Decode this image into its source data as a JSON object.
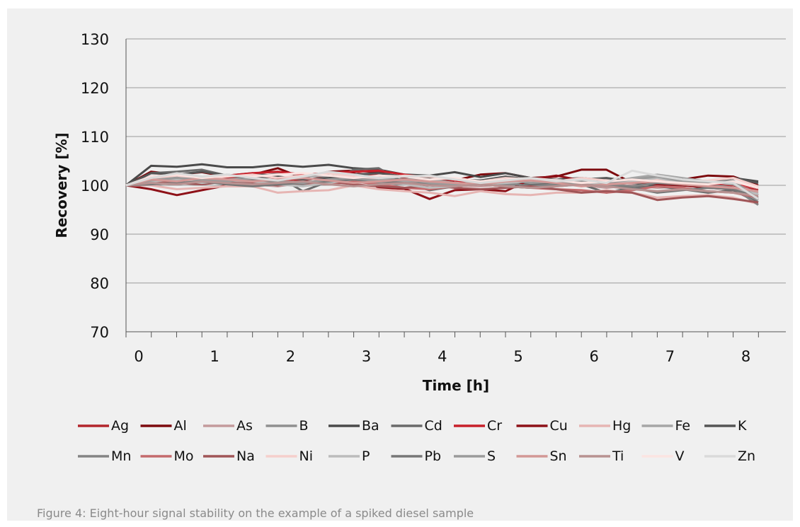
{
  "caption": "Figure 4: Eight-hour signal stability on the example of a spiked diesel sample",
  "chart_data": {
    "type": "line",
    "title": "",
    "xlabel": "Time [h]",
    "ylabel": "Recovery  [%]",
    "xlim": [
      0,
      8.33
    ],
    "ylim": [
      70,
      130
    ],
    "xticks": [
      0,
      1,
      2,
      3,
      4,
      5,
      6,
      7,
      8
    ],
    "yticks": [
      70,
      80,
      90,
      100,
      110,
      120,
      130
    ],
    "grid": "horizontal",
    "legend_position": "bottom",
    "x": [
      0,
      0.33,
      0.67,
      1,
      1.33,
      1.67,
      2,
      2.33,
      2.67,
      3,
      3.33,
      3.67,
      4,
      4.33,
      4.67,
      5,
      5.33,
      5.67,
      6,
      6.33,
      6.67,
      7,
      7.33,
      7.67,
      8,
      8.33
    ],
    "series": [
      {
        "name": "Ag",
        "color": "#b3262c",
        "values": [
          100,
          101.5,
          101.2,
          100.8,
          101.5,
          102,
          101.5,
          101,
          101.8,
          102.5,
          102,
          101,
          100.5,
          100,
          100.8,
          101,
          101.5,
          101.2,
          100.5,
          100.2,
          100.5,
          100.8,
          100.5,
          100.2,
          100,
          99
        ]
      },
      {
        "name": "Al",
        "color": "#7d0a0e",
        "values": [
          100,
          102.8,
          102.2,
          102.7,
          101.8,
          102.2,
          103.5,
          101.5,
          102.8,
          103,
          102.7,
          101.5,
          100,
          101,
          102.2,
          102.5,
          101.5,
          101.8,
          103.2,
          103.2,
          100.5,
          100.5,
          101.2,
          102,
          101.8,
          100
        ]
      },
      {
        "name": "As",
        "color": "#c49a9c",
        "values": [
          100,
          100.5,
          100.8,
          101.2,
          100.5,
          100.2,
          99.8,
          100.5,
          101,
          101.5,
          100.5,
          100.8,
          100.2,
          100,
          99.8,
          100.2,
          100.5,
          100.2,
          100,
          99.5,
          100,
          99.5,
          99.8,
          100.5,
          100.2,
          98.5
        ]
      },
      {
        "name": "B",
        "color": "#8f8f8f",
        "values": [
          100,
          101.2,
          101.8,
          101.5,
          102.2,
          101.5,
          102.5,
          102.2,
          101.8,
          102.5,
          101.5,
          101.2,
          101.5,
          101,
          100.5,
          100.2,
          100.5,
          100.8,
          101.2,
          100.5,
          100.8,
          101.5,
          100.8,
          100.2,
          99.5,
          97
        ]
      },
      {
        "name": "Ba",
        "color": "#4a4a4a",
        "values": [
          100,
          104,
          103.8,
          104.3,
          103.7,
          103.7,
          104.2,
          103.8,
          104.2,
          103.5,
          103.2,
          102.2,
          102,
          102.7,
          101.7,
          102.5,
          101.5,
          101.2,
          101.5,
          101,
          100.5,
          100,
          100.8,
          100.5,
          101.5,
          100.8
        ]
      },
      {
        "name": "Cd",
        "color": "#6a6a6a",
        "values": [
          100,
          102.5,
          102.8,
          103.2,
          102,
          102.5,
          101.8,
          98.8,
          100.8,
          103.2,
          103.5,
          100.5,
          99,
          99.8,
          100.2,
          101,
          100.2,
          100.5,
          100.2,
          98.5,
          99.5,
          99.8,
          99.2,
          98.5,
          99,
          96.5
        ]
      },
      {
        "name": "Cr",
        "color": "#c8202a",
        "values": [
          100,
          101.8,
          102.2,
          101.5,
          102,
          102.5,
          102.8,
          102.2,
          102.5,
          102.8,
          103,
          102.2,
          101.5,
          101,
          100.5,
          100.8,
          101.2,
          100.5,
          100.2,
          100.8,
          101.2,
          101.5,
          100.8,
          100.2,
          100.5,
          99.5
        ]
      },
      {
        "name": "Cu",
        "color": "#8e1118",
        "values": [
          100,
          99.2,
          98,
          99,
          100,
          100.5,
          100.2,
          100.5,
          101,
          102.5,
          99.5,
          99.3,
          97.2,
          99,
          99.2,
          98.8,
          101.2,
          102,
          101,
          100.5,
          100.8,
          100.2,
          100,
          99.5,
          99.2,
          98
        ]
      },
      {
        "name": "Hg",
        "color": "#e6b5b3",
        "values": [
          100,
          100,
          99.2,
          99.5,
          99.8,
          99.8,
          98.5,
          98.8,
          99,
          100,
          99.2,
          98.8,
          98.5,
          97.8,
          98.8,
          98.2,
          98,
          98.5,
          98.5,
          99,
          98.5,
          97.5,
          97.8,
          98,
          97.5,
          96.2
        ]
      },
      {
        "name": "Fe",
        "color": "#a6a6a6",
        "values": [
          100,
          101,
          101.5,
          100.8,
          101.2,
          101.5,
          101,
          101.8,
          102,
          101.5,
          101.2,
          100.8,
          101.2,
          100.5,
          100.2,
          100.8,
          101,
          100.5,
          100.2,
          100.5,
          101.5,
          102.2,
          101.5,
          100.8,
          100.2,
          98
        ]
      },
      {
        "name": "K",
        "color": "#555555",
        "values": [
          100,
          102.5,
          102.2,
          102.8,
          102,
          101.5,
          101.8,
          101.2,
          101.5,
          102.2,
          102.5,
          101.8,
          101.5,
          101.2,
          101,
          101.8,
          101.2,
          101,
          101.2,
          101.5,
          100.8,
          101.8,
          101.2,
          100.5,
          101.5,
          100.5
        ]
      },
      {
        "name": "Mn",
        "color": "#848484",
        "values": [
          100,
          100.5,
          100.8,
          100.5,
          100.8,
          101.2,
          100.5,
          100.2,
          100.8,
          101.2,
          100.5,
          100.2,
          100.5,
          99.8,
          100.2,
          100.5,
          99.8,
          100.2,
          100.8,
          100.2,
          99.8,
          100.5,
          100.2,
          99.8,
          99.5,
          96
        ]
      },
      {
        "name": "Mo",
        "color": "#c46a6c",
        "values": [
          100,
          101.2,
          100.8,
          101.5,
          100.5,
          100.8,
          101.2,
          100.5,
          100.2,
          100.8,
          100.2,
          99.5,
          99.2,
          99.8,
          100.2,
          99.8,
          99.5,
          99.2,
          99,
          98.5,
          99,
          99.8,
          99.5,
          98.8,
          98.5,
          97.5
        ]
      },
      {
        "name": "Na",
        "color": "#a05557",
        "values": [
          100,
          100.8,
          100.5,
          100.2,
          100.8,
          100.5,
          100,
          100.5,
          100.8,
          100.2,
          99.8,
          99.5,
          100,
          99.5,
          99.2,
          99.5,
          99.8,
          99.2,
          98.5,
          98.8,
          98.5,
          97,
          97.5,
          97.8,
          97.2,
          96.5
        ]
      },
      {
        "name": "Ni",
        "color": "#f5cfcc",
        "values": [
          100,
          101.5,
          102,
          101.2,
          101.8,
          102.2,
          101.5,
          102,
          102.5,
          101.8,
          101.5,
          102,
          101.8,
          101.2,
          100.8,
          101.5,
          101.2,
          100.8,
          101.5,
          101,
          100.5,
          101.2,
          100.8,
          101,
          101.5,
          99.8
        ]
      },
      {
        "name": "P",
        "color": "#bcbcbc",
        "values": [
          100,
          100.8,
          101.2,
          100.5,
          101,
          100.8,
          100.2,
          99.8,
          100.5,
          101.2,
          100.8,
          100.2,
          99.5,
          99.8,
          100.2,
          100.5,
          100.8,
          101.2,
          100.5,
          100.2,
          100.8,
          101.5,
          100.5,
          99.8,
          99.2,
          98.2
        ]
      },
      {
        "name": "Pb",
        "color": "#777777",
        "values": [
          100,
          100.2,
          100.5,
          100.8,
          100.2,
          99.8,
          100.2,
          100.5,
          100.8,
          101.2,
          100.8,
          100.5,
          100.2,
          100.5,
          100.2,
          99.8,
          99.5,
          99.8,
          100.2,
          99.8,
          99.5,
          98.5,
          99,
          99.5,
          99.2,
          97.5
        ]
      },
      {
        "name": "S",
        "color": "#9a9a9a",
        "values": [
          100,
          101,
          101.5,
          101.2,
          100.8,
          101.5,
          100.8,
          100.5,
          101.2,
          101.5,
          100.8,
          101.2,
          100.5,
          100.2,
          100.8,
          101.2,
          100.5,
          100.8,
          101,
          100.5,
          101.2,
          101.8,
          100.8,
          100.5,
          101,
          97.2
        ]
      },
      {
        "name": "Sn",
        "color": "#d39896",
        "values": [
          100,
          101.2,
          100.8,
          101.5,
          101.2,
          100.8,
          101.2,
          101.5,
          101,
          100.5,
          100.8,
          101.2,
          100.8,
          100.5,
          100.2,
          100.8,
          101,
          100.5,
          99.8,
          100.2,
          100.5,
          100.8,
          100.2,
          99.8,
          99.5,
          98.8
        ]
      },
      {
        "name": "Ti",
        "color": "#b89291",
        "values": [
          100,
          100.5,
          100.2,
          100.8,
          100.5,
          100.2,
          100.5,
          100.8,
          100.2,
          99.8,
          100.2,
          100.5,
          100,
          99.8,
          100.2,
          99.8,
          99.5,
          99.8,
          100.2,
          99.8,
          99.2,
          98.8,
          99.2,
          98.8,
          98.5,
          97.8
        ]
      },
      {
        "name": "V",
        "color": "#fbe4e1",
        "values": [
          100,
          101.8,
          102.2,
          101.5,
          102,
          101.8,
          102.2,
          102.5,
          102,
          101.5,
          102,
          101.8,
          101.2,
          101.5,
          100.8,
          101.2,
          101.5,
          101,
          100.5,
          100.8,
          101.2,
          100.8,
          100.5,
          100.2,
          100.8,
          99.5
        ]
      },
      {
        "name": "Zn",
        "color": "#dadada",
        "values": [
          100,
          101.5,
          102.5,
          101.8,
          102.2,
          101.5,
          101,
          101.8,
          102.8,
          102.2,
          101.5,
          101.8,
          102,
          101.2,
          100.5,
          101,
          101.5,
          100.8,
          101.2,
          100.5,
          103,
          102,
          101.2,
          100.8,
          100.5,
          97.2
        ]
      }
    ]
  }
}
